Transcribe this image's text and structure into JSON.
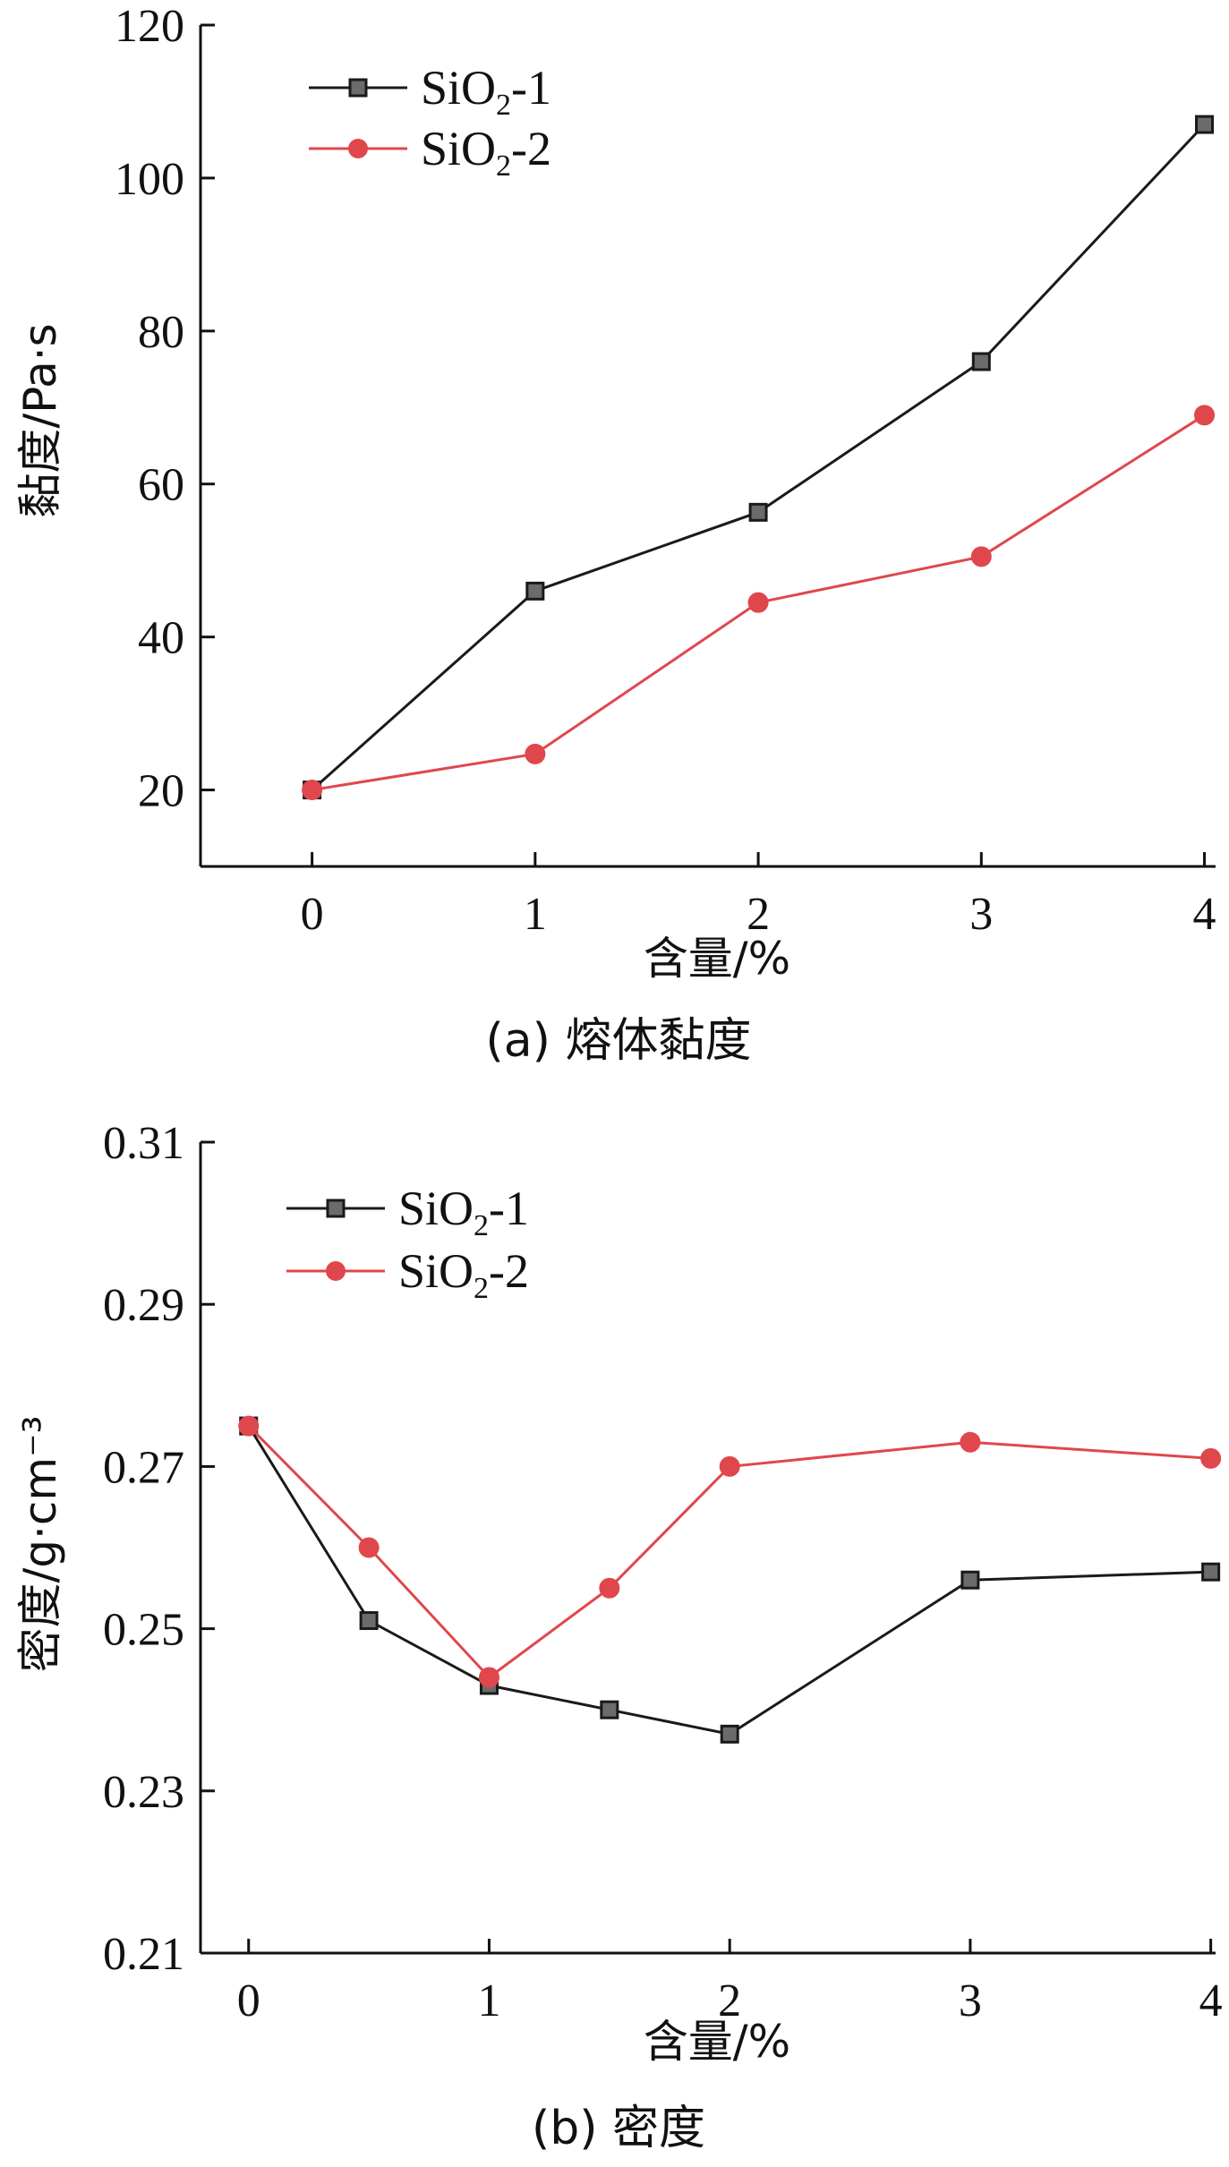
{
  "colors": {
    "series1": "#1a1a1a",
    "series1_marker": "#6b6b6b",
    "series2": "#e0474c",
    "axis": "#111111"
  },
  "chart_data": [
    {
      "type": "line",
      "caption": "(a) 熔体黏度",
      "xlabel": "含量/%",
      "ylabel": "黏度/Pa·s",
      "xlim": [
        -0.5,
        4.05
      ],
      "ylim": [
        10,
        120
      ],
      "xticks": [
        "0",
        "1",
        "2",
        "3",
        "4"
      ],
      "yticks": [
        "20",
        "40",
        "60",
        "80",
        "100",
        "120"
      ],
      "legend_position": "top-left",
      "series": [
        {
          "name": "SiO2-1",
          "name_base": "SiO",
          "name_sub": "2",
          "name_suffix": "-1",
          "marker": "square",
          "x": [
            0,
            1,
            2,
            3,
            4
          ],
          "y": [
            20,
            46,
            56.3,
            76,
            107
          ]
        },
        {
          "name": "SiO2-2",
          "name_base": "SiO",
          "name_sub": "2",
          "name_suffix": "-2",
          "marker": "circle",
          "x": [
            0,
            1,
            2,
            3,
            4
          ],
          "y": [
            20,
            24.7,
            44.5,
            50.5,
            69
          ]
        }
      ]
    },
    {
      "type": "line",
      "caption": "(b) 密度",
      "xlabel": "含量/%",
      "ylabel": "密度/g·cm⁻³",
      "xlim": [
        -0.2,
        4.02
      ],
      "ylim": [
        0.21,
        0.31
      ],
      "xticks": [
        "0",
        "1",
        "2",
        "3",
        "4"
      ],
      "yticks": [
        "0.21",
        "0.23",
        "0.25",
        "0.27",
        "0.29",
        "0.31"
      ],
      "legend_position": "top-left",
      "series": [
        {
          "name": "SiO2-1",
          "name_base": "SiO",
          "name_sub": "2",
          "name_suffix": "-1",
          "marker": "square",
          "x": [
            0,
            0.5,
            1,
            1.5,
            2,
            3,
            4
          ],
          "y": [
            0.275,
            0.251,
            0.243,
            0.24,
            0.237,
            0.256,
            0.257
          ]
        },
        {
          "name": "SiO2-2",
          "name_base": "SiO",
          "name_sub": "2",
          "name_suffix": "-2",
          "marker": "circle",
          "x": [
            0,
            0.5,
            1,
            1.5,
            2,
            3,
            4
          ],
          "y": [
            0.275,
            0.26,
            0.244,
            0.255,
            0.27,
            0.273,
            0.271
          ]
        }
      ]
    }
  ]
}
